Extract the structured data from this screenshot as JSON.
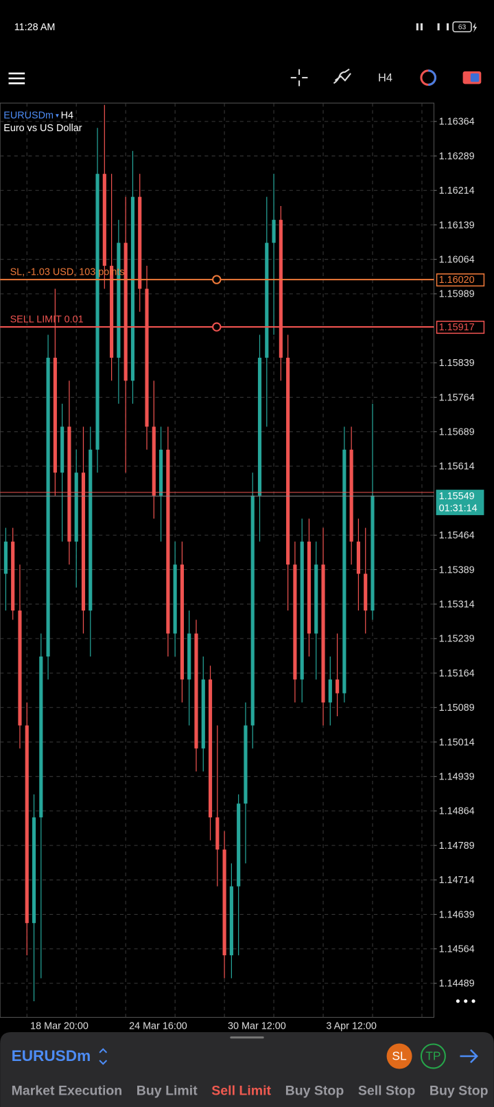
{
  "status_bar": {
    "time": "11:28 AM",
    "battery": "63"
  },
  "toolbar": {
    "timeframe": "H4"
  },
  "chart_data": {
    "type": "candlestick",
    "symbol": "EURUSDm",
    "timeframe": "H4",
    "description": "Euro vs US Dollar",
    "colors": {
      "up": "#26a69a",
      "down": "#ef5350"
    },
    "grid": true,
    "ylim": [
      1.14415,
      1.16404
    ],
    "yticks": [
      1.16364,
      1.16289,
      1.16214,
      1.16139,
      1.16064,
      1.15989,
      1.15839,
      1.15764,
      1.15689,
      1.15614,
      1.15464,
      1.15389,
      1.15314,
      1.15239,
      1.15164,
      1.15089,
      1.15014,
      1.14939,
      1.14864,
      1.14789,
      1.14714,
      1.14639,
      1.14564,
      1.14489
    ],
    "x_labels": [
      "18 Mar 20:00",
      "24 Mar 16:00",
      "30 Mar 12:00",
      "3 Apr 12:00"
    ],
    "levels": [
      {
        "label": "SL, -1.03 USD, 103 points",
        "price": {
          "value": 1.1602,
          "label": "1.16020"
        },
        "color": "#f07a3a"
      },
      {
        "label": "SELL LIMIT 0.01",
        "price": 1.15917,
        "color": "#ef5350"
      }
    ],
    "ask": 1.15557,
    "bid": 1.15549,
    "timer": "01:31:14",
    "candles": [
      [
        1.1538,
        1.1548,
        1.153,
        1.1545
      ],
      [
        1.1545,
        1.1548,
        1.1528,
        1.153
      ],
      [
        1.153,
        1.154,
        1.15,
        1.1505
      ],
      [
        1.1505,
        1.151,
        1.1455,
        1.1462
      ],
      [
        1.1462,
        1.149,
        1.1445,
        1.1485
      ],
      [
        1.1485,
        1.1525,
        1.145,
        1.152
      ],
      [
        1.152,
        1.159,
        1.1515,
        1.1585
      ],
      [
        1.1585,
        1.16,
        1.1555,
        1.156
      ],
      [
        1.156,
        1.1575,
        1.1545,
        1.157
      ],
      [
        1.157,
        1.158,
        1.154,
        1.1545
      ],
      [
        1.1545,
        1.1565,
        1.1535,
        1.156
      ],
      [
        1.156,
        1.157,
        1.1525,
        1.153
      ],
      [
        1.153,
        1.157,
        1.152,
        1.1565
      ],
      [
        1.1565,
        1.1635,
        1.156,
        1.1625
      ],
      [
        1.1625,
        1.164,
        1.16,
        1.1605
      ],
      [
        1.1605,
        1.1625,
        1.158,
        1.1585
      ],
      [
        1.1585,
        1.1615,
        1.1575,
        1.161
      ],
      [
        1.161,
        1.162,
        1.156,
        1.158
      ],
      [
        1.158,
        1.163,
        1.1575,
        1.162
      ],
      [
        1.162,
        1.1625,
        1.1595,
        1.16
      ],
      [
        1.16,
        1.1605,
        1.1565,
        1.157
      ],
      [
        1.157,
        1.158,
        1.155,
        1.1555
      ],
      [
        1.1555,
        1.157,
        1.1545,
        1.1565
      ],
      [
        1.1565,
        1.157,
        1.152,
        1.1525
      ],
      [
        1.1525,
        1.1545,
        1.152,
        1.154
      ],
      [
        1.154,
        1.1545,
        1.151,
        1.1515
      ],
      [
        1.1515,
        1.153,
        1.1505,
        1.1525
      ],
      [
        1.1525,
        1.1528,
        1.1495,
        1.15
      ],
      [
        1.15,
        1.152,
        1.1495,
        1.1515
      ],
      [
        1.1515,
        1.1518,
        1.148,
        1.1485
      ],
      [
        1.1485,
        1.1505,
        1.147,
        1.1478
      ],
      [
        1.1478,
        1.1482,
        1.145,
        1.1455
      ],
      [
        1.1455,
        1.1475,
        1.145,
        1.147
      ],
      [
        1.147,
        1.149,
        1.1455,
        1.1488
      ],
      [
        1.1488,
        1.151,
        1.1475,
        1.1505
      ],
      [
        1.1505,
        1.156,
        1.15,
        1.1555
      ],
      [
        1.1555,
        1.159,
        1.1545,
        1.1585
      ],
      [
        1.1585,
        1.162,
        1.157,
        1.161
      ],
      [
        1.161,
        1.1625,
        1.159,
        1.1615
      ],
      [
        1.1615,
        1.1618,
        1.158,
        1.1585
      ],
      [
        1.1585,
        1.159,
        1.153,
        1.154
      ],
      [
        1.154,
        1.1545,
        1.151,
        1.1515
      ],
      [
        1.1515,
        1.155,
        1.151,
        1.1545
      ],
      [
        1.1545,
        1.155,
        1.152,
        1.1525
      ],
      [
        1.1525,
        1.1545,
        1.1515,
        1.154
      ],
      [
        1.154,
        1.1548,
        1.1505,
        1.151
      ],
      [
        1.151,
        1.152,
        1.1505,
        1.1515
      ],
      [
        1.1515,
        1.1525,
        1.1507,
        1.1512
      ],
      [
        1.1512,
        1.157,
        1.151,
        1.1565
      ],
      [
        1.1565,
        1.157,
        1.154,
        1.1545
      ],
      [
        1.1545,
        1.155,
        1.153,
        1.1538
      ],
      [
        1.1538,
        1.1548,
        1.1525,
        1.153
      ],
      [
        1.153,
        1.1575,
        1.1528,
        1.1555
      ]
    ]
  },
  "order_panel": {
    "symbol": "EURUSDm",
    "sl": "SL",
    "tp": "TP",
    "tabs": [
      "Market Execution",
      "Buy Limit",
      "Sell Limit",
      "Buy Stop",
      "Sell Stop",
      "Buy Stop"
    ]
  }
}
